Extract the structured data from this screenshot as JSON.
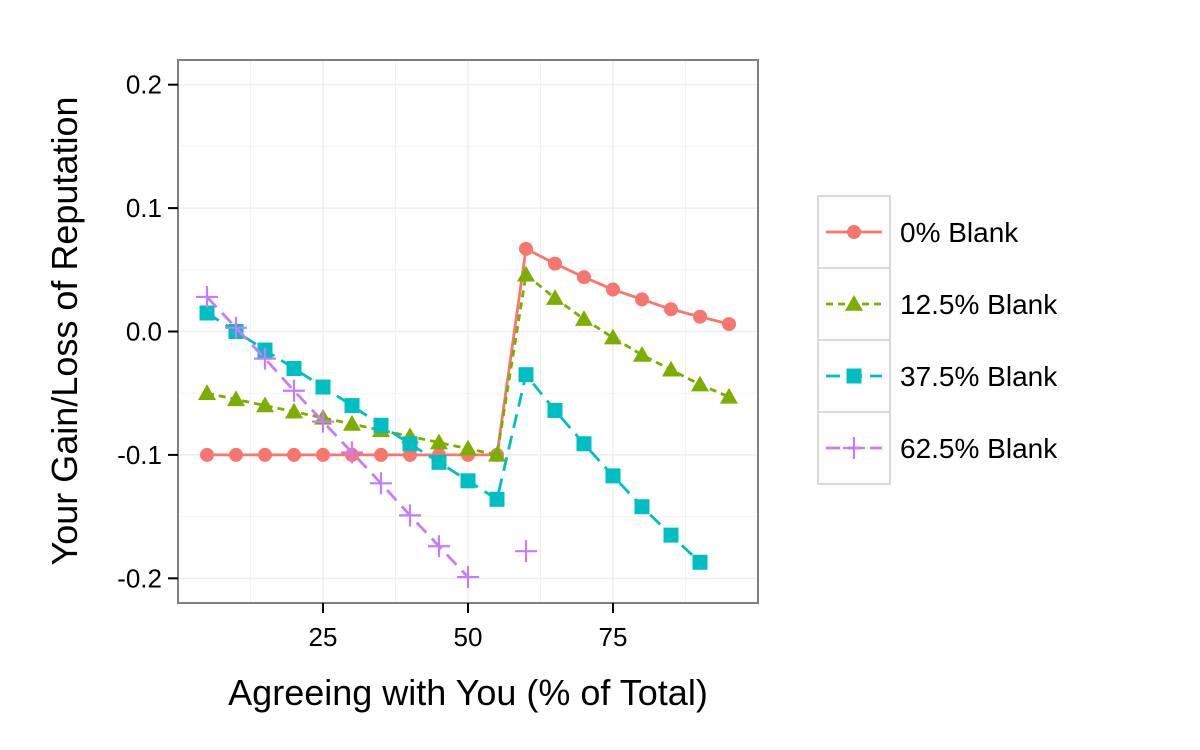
{
  "chart_data": {
    "type": "line",
    "xlabel": "Agreeing with You (% of Total)",
    "ylabel": "Your Gain/Loss of Reputation",
    "xlim": [
      0,
      100
    ],
    "ylim": [
      -0.22,
      0.22
    ],
    "x_ticks": [
      25,
      50,
      75
    ],
    "x_tick_labels": [
      "25",
      "50",
      "75"
    ],
    "y_ticks": [
      -0.2,
      -0.1,
      0.0,
      0.1,
      0.2
    ],
    "y_tick_labels": [
      "-0.2",
      "-0.1",
      "0.0",
      "0.1",
      "0.2"
    ],
    "grid": true,
    "legend_position": "right",
    "series": [
      {
        "name": "0% Blank",
        "color": "#F8766D",
        "marker": "circle",
        "dash": "solid",
        "segments": [
          [
            [
              5,
              -0.1
            ],
            [
              10,
              -0.1
            ],
            [
              15,
              -0.1
            ],
            [
              20,
              -0.1
            ],
            [
              25,
              -0.1
            ],
            [
              30,
              -0.1
            ],
            [
              35,
              -0.1
            ],
            [
              40,
              -0.1
            ],
            [
              45,
              -0.1
            ],
            [
              50,
              -0.1
            ],
            [
              55,
              -0.1
            ],
            [
              60,
              0.067
            ],
            [
              65,
              0.055
            ],
            [
              70,
              0.044
            ],
            [
              75,
              0.034
            ],
            [
              80,
              0.026
            ],
            [
              85,
              0.018
            ],
            [
              90,
              0.012
            ],
            [
              95,
              0.006
            ]
          ]
        ]
      },
      {
        "name": "12.5% Blank",
        "color": "#7CAE00",
        "marker": "triangle",
        "dash": "dotted",
        "segments": [
          [
            [
              5,
              -0.05
            ],
            [
              10,
              -0.055
            ],
            [
              15,
              -0.06
            ],
            [
              20,
              -0.065
            ],
            [
              25,
              -0.07
            ],
            [
              30,
              -0.075
            ],
            [
              35,
              -0.08
            ],
            [
              40,
              -0.085
            ],
            [
              45,
              -0.09
            ],
            [
              50,
              -0.095
            ],
            [
              55,
              -0.1
            ],
            [
              60,
              0.046
            ],
            [
              65,
              0.027
            ],
            [
              70,
              0.01
            ],
            [
              75,
              -0.005
            ],
            [
              80,
              -0.019
            ],
            [
              85,
              -0.031
            ],
            [
              90,
              -0.043
            ],
            [
              95,
              -0.053
            ]
          ]
        ]
      },
      {
        "name": "37.5% Blank",
        "color": "#00BFC4",
        "marker": "square",
        "dash": "dashed",
        "segments": [
          [
            [
              5,
              0.015
            ],
            [
              10,
              0.0
            ],
            [
              15,
              -0.015
            ],
            [
              20,
              -0.03
            ],
            [
              25,
              -0.045
            ],
            [
              30,
              -0.06
            ],
            [
              35,
              -0.076
            ],
            [
              40,
              -0.091
            ],
            [
              45,
              -0.106
            ],
            [
              50,
              -0.121
            ],
            [
              55,
              -0.136
            ],
            [
              60,
              -0.035
            ],
            [
              65,
              -0.064
            ],
            [
              70,
              -0.091
            ],
            [
              75,
              -0.117
            ],
            [
              80,
              -0.142
            ],
            [
              85,
              -0.165
            ],
            [
              90,
              -0.187
            ]
          ]
        ]
      },
      {
        "name": "62.5% Blank",
        "color": "#C77CFF",
        "marker": "plus",
        "dash": "dashed",
        "segments": [
          [
            [
              5,
              0.028
            ],
            [
              10,
              0.003
            ],
            [
              15,
              -0.022
            ],
            [
              20,
              -0.048
            ],
            [
              25,
              -0.073
            ],
            [
              30,
              -0.098
            ],
            [
              35,
              -0.123
            ],
            [
              40,
              -0.149
            ],
            [
              45,
              -0.174
            ],
            [
              50,
              -0.199
            ]
          ],
          [
            [
              60,
              -0.178
            ]
          ]
        ]
      }
    ]
  }
}
